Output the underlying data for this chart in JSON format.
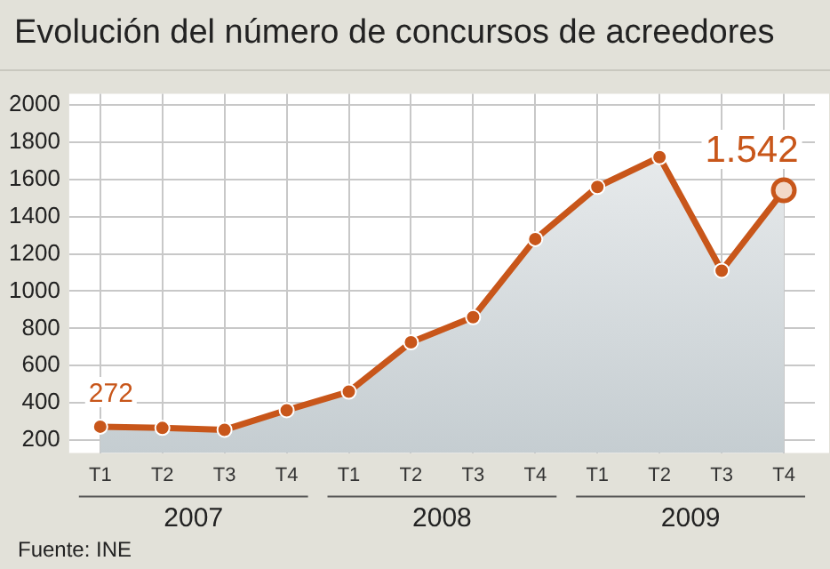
{
  "chart_data": {
    "type": "area",
    "title": "Evolución del número de concursos de acreedores",
    "categories": [
      "T1",
      "T2",
      "T3",
      "T4",
      "T1",
      "T2",
      "T3",
      "T4",
      "T1",
      "T2",
      "T3",
      "T4"
    ],
    "series": [
      {
        "color": "#c8561a",
        "values": [
          272,
          265,
          255,
          360,
          460,
          725,
          860,
          1280,
          1560,
          1720,
          1110,
          1542
        ],
        "value_labels": [
          "272",
          null,
          null,
          null,
          null,
          null,
          null,
          null,
          null,
          null,
          null,
          "1.542"
        ]
      }
    ],
    "ylim": [
      130,
      2060
    ],
    "yticks": [
      200,
      400,
      600,
      800,
      1000,
      1200,
      1400,
      1600,
      1800,
      2000
    ],
    "grid": true,
    "legend": false,
    "marker": "circle",
    "annotations": [
      "2007",
      "2008",
      "2009",
      "Fuente: INE"
    ]
  }
}
